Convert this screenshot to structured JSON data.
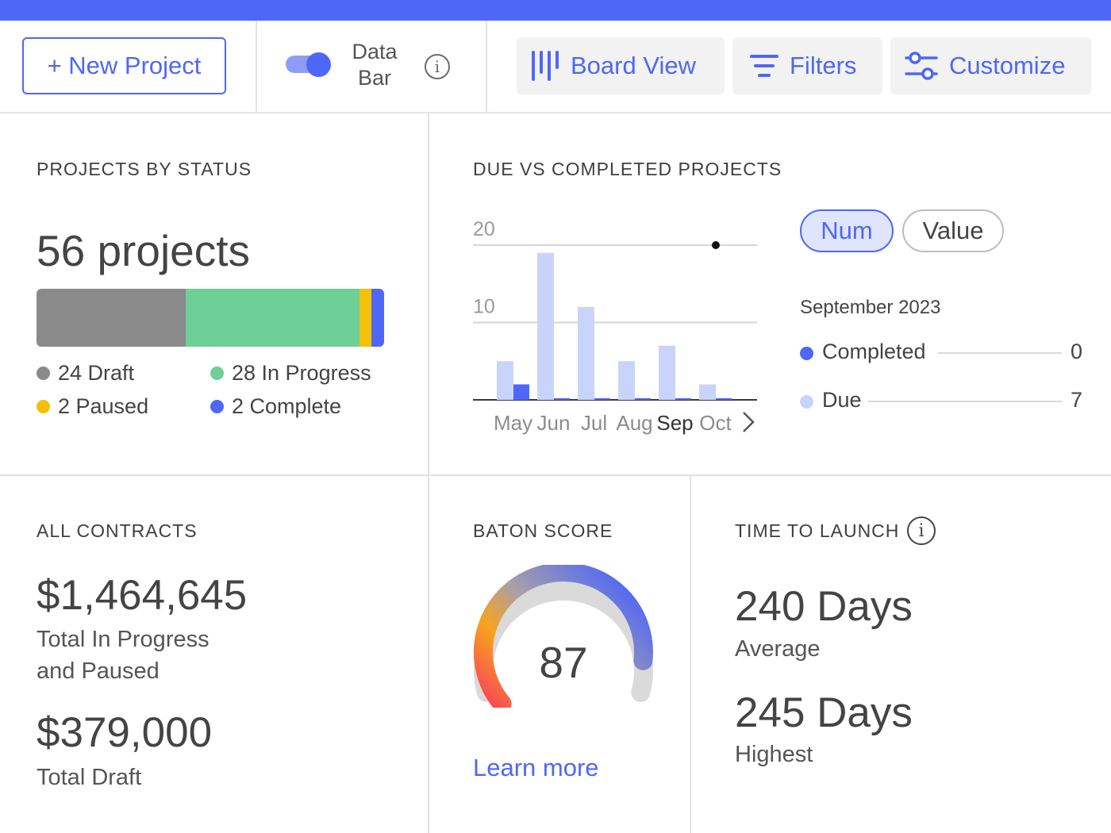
{
  "colors": {
    "accent": "#4f67f6",
    "draft": "#8a8a8a",
    "in_progress": "#6ecf97",
    "paused": "#f5c00a",
    "complete": "#4f67f6",
    "due": "#c9d4fc"
  },
  "toolbar": {
    "new_project_label": "+ New Project",
    "data_bar_line1": "Data",
    "data_bar_line2": "Bar",
    "info_glyph": "i",
    "board_view_label": "Board View",
    "filters_label": "Filters",
    "customize_label": "Customize"
  },
  "projects_by_status": {
    "title": "PROJECTS BY STATUS",
    "total_label": "56 projects",
    "segments": [
      {
        "name": "Draft",
        "count": 24,
        "label": "24 Draft",
        "color": "#8a8a8a"
      },
      {
        "name": "In Progress",
        "count": 28,
        "label": "28 In Progress",
        "color": "#6ecf97"
      },
      {
        "name": "Paused",
        "count": 2,
        "label": "2 Paused",
        "color": "#f5c00a"
      },
      {
        "name": "Complete",
        "count": 2,
        "label": "2 Complete",
        "color": "#4f67f6"
      }
    ]
  },
  "due_vs_completed": {
    "title": "DUE VS COMPLETED PROJECTS",
    "num_label": "Num",
    "value_label": "Value",
    "selected_period": "September 2023",
    "completed_label": "Completed",
    "completed_value": "0",
    "due_label": "Due",
    "due_value": "7",
    "next_glyph": "›"
  },
  "chart_data": {
    "type": "bar",
    "title": "DUE VS COMPLETED PROJECTS",
    "categories": [
      "May",
      "Jun",
      "Jul",
      "Aug",
      "Sep",
      "Oct"
    ],
    "series": [
      {
        "name": "Due",
        "values": [
          5,
          19,
          12,
          5,
          7,
          2
        ]
      },
      {
        "name": "Completed",
        "values": [
          2,
          0,
          0,
          0,
          0,
          0
        ]
      }
    ],
    "yticks": [
      "10",
      "20"
    ],
    "ylim": [
      0,
      20
    ],
    "xlabel": "",
    "ylabel": "",
    "highlighted_category": "Sep"
  },
  "contracts": {
    "title": "ALL CONTRACTS",
    "amount1": "$1,464,645",
    "desc1_line1": "Total In Progress",
    "desc1_line2": "and Paused",
    "amount2": "$379,000",
    "desc2": "Total Draft"
  },
  "baton": {
    "title": "BATON SCORE",
    "score": 87,
    "score_text": "87",
    "learn_more": "Learn more"
  },
  "launch": {
    "title": "TIME TO LAUNCH",
    "info_glyph": "i",
    "avg_value": "240 Days",
    "avg_label": "Average",
    "high_value": "245 Days",
    "high_label": "Highest"
  }
}
